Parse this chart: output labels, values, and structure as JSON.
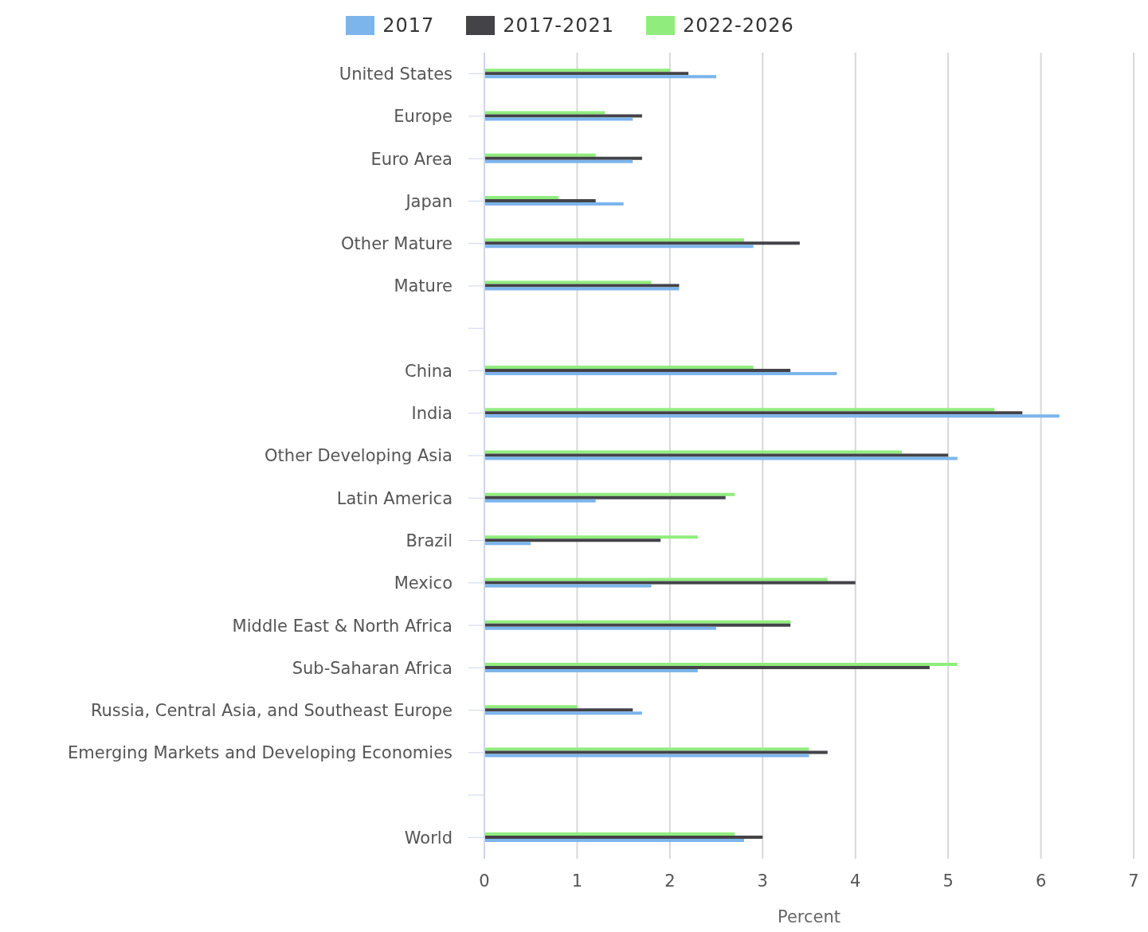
{
  "chart_data": {
    "type": "bar",
    "orientation": "horizontal",
    "xlabel": "Percent",
    "categories": [
      "United States",
      "Europe",
      "Euro Area",
      "Japan",
      "Other Mature",
      "Mature",
      null,
      "China",
      "India",
      "Other Developing Asia",
      "Latin America",
      "Brazil",
      "Mexico",
      "Middle East & North Africa",
      "Sub-Saharan Africa",
      "Russia, Central Asia, and Southeast Europe",
      "Emerging Markets and Developing Economies",
      null,
      "World"
    ],
    "series": [
      {
        "name": "2017",
        "color": "#7cb5ec",
        "values": [
          2.5,
          1.6,
          1.6,
          1.5,
          2.9,
          2.1,
          null,
          3.8,
          6.2,
          5.1,
          1.2,
          0.5,
          1.8,
          2.5,
          2.3,
          1.7,
          3.5,
          null,
          2.8
        ]
      },
      {
        "name": "2017-2021",
        "color": "#434348",
        "values": [
          2.2,
          1.7,
          1.7,
          1.2,
          3.4,
          2.1,
          null,
          3.3,
          5.8,
          5.0,
          2.6,
          1.9,
          4.0,
          3.3,
          4.8,
          1.6,
          3.7,
          null,
          3.0
        ]
      },
      {
        "name": "2022-2026",
        "color": "#90ed7d",
        "values": [
          2.0,
          1.3,
          1.2,
          0.8,
          2.8,
          1.8,
          null,
          2.9,
          5.5,
          4.5,
          2.7,
          2.3,
          3.7,
          3.3,
          5.1,
          1.0,
          3.5,
          null,
          2.7
        ]
      }
    ],
    "xlim": [
      0,
      7
    ],
    "xticks": [
      0,
      1,
      2,
      3,
      4,
      5,
      6,
      7
    ],
    "grid": "x",
    "legend": "top"
  }
}
